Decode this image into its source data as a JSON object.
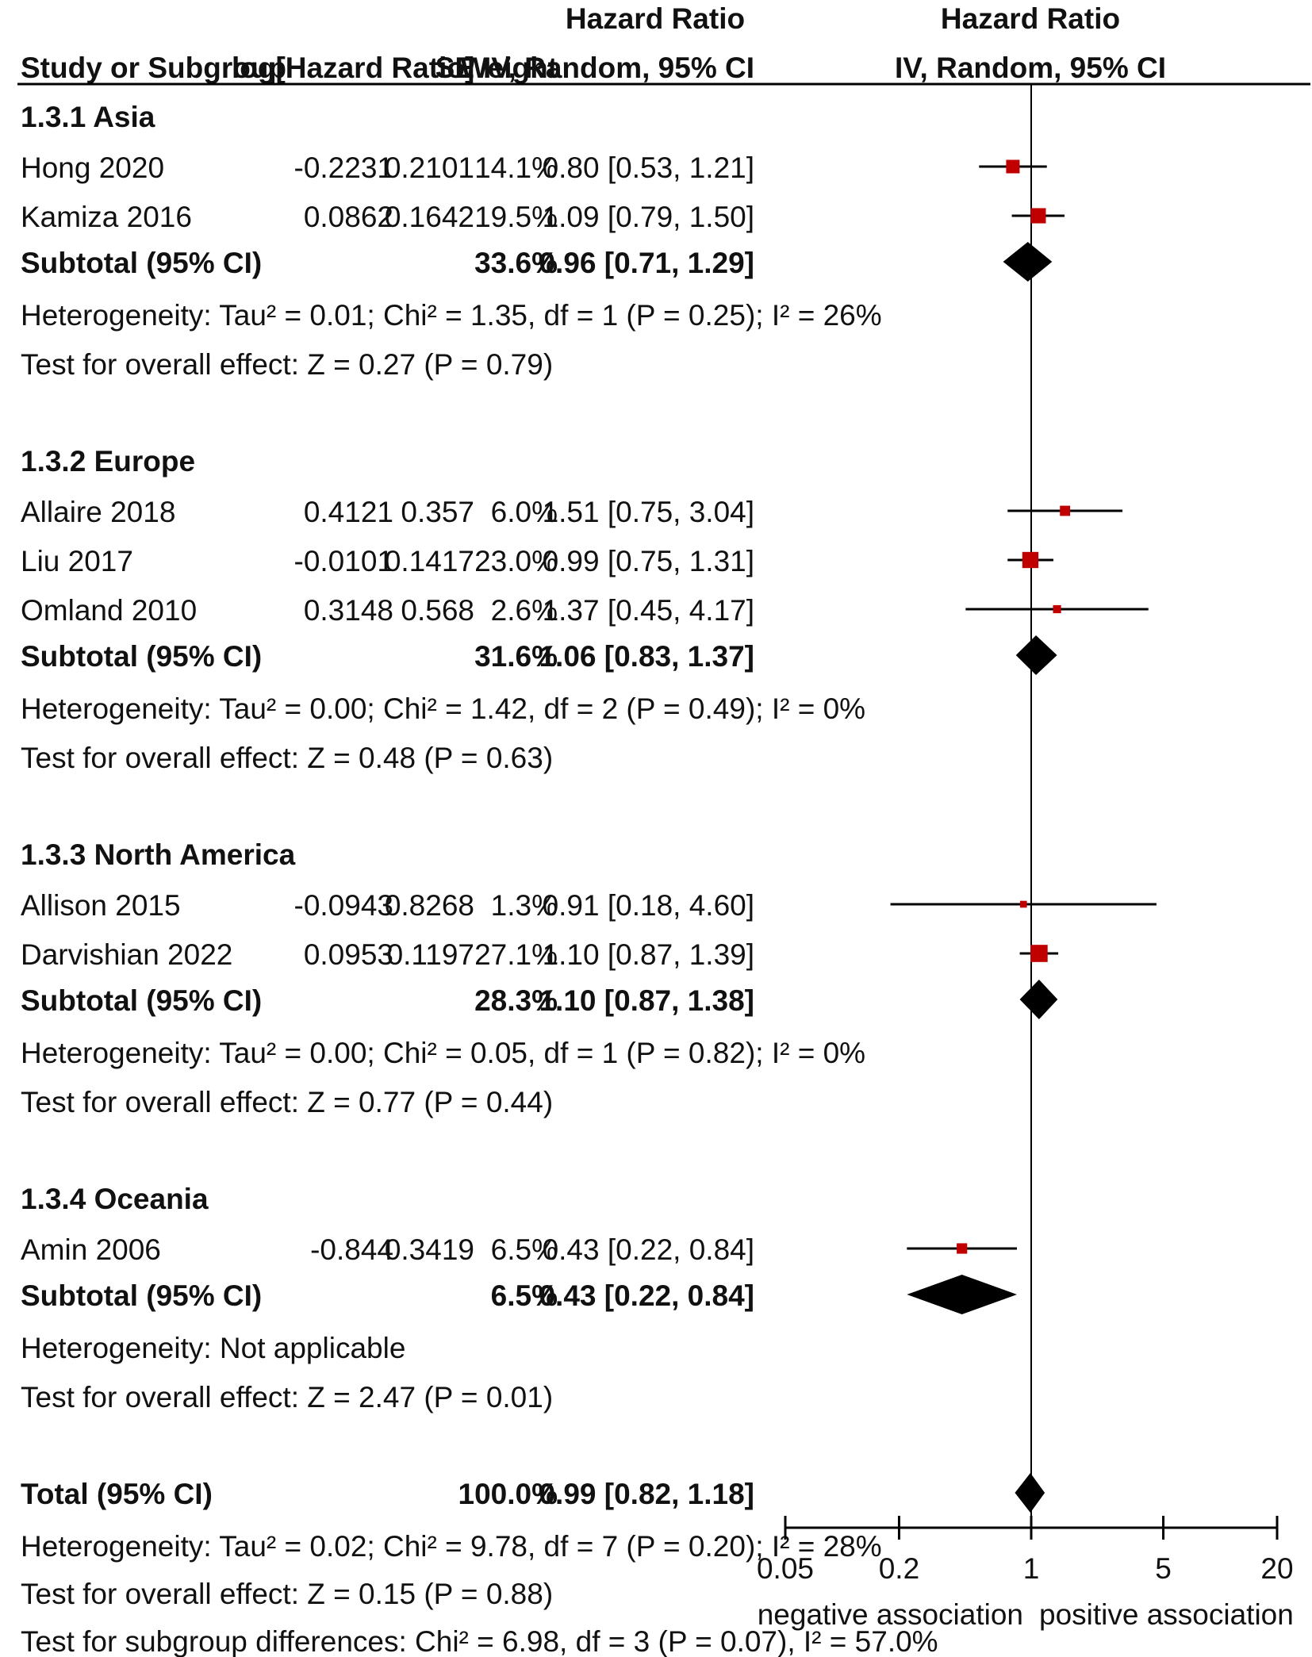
{
  "header": {
    "effect_measure": "Hazard Ratio",
    "study_col": "Study or Subgroup",
    "loghr_col": "log[Hazard Ratio]",
    "se_col": "SE",
    "weight_col": "Weight",
    "ci_col": "IV, Random, 95% CI",
    "plot_effect_measure": "Hazard Ratio",
    "plot_ci_col": "IV, Random, 95% CI"
  },
  "subgroups": [
    {
      "title": "1.3.1 Asia",
      "studies": [
        {
          "name": "Hong 2020",
          "loghr": "-0.2231",
          "se": "0.2101",
          "weight": "14.1%",
          "ci_text": "0.80 [0.53, 1.21]"
        },
        {
          "name": "Kamiza 2016",
          "loghr": "0.0862",
          "se": "0.1642",
          "weight": "19.5%",
          "ci_text": "1.09 [0.79, 1.50]"
        }
      ],
      "subtotal": {
        "label": "Subtotal (95% CI)",
        "weight": "33.6%",
        "ci_text": "0.96 [0.71, 1.29]"
      },
      "heterogeneity": "Heterogeneity: Tau² = 0.01; Chi² = 1.35, df = 1 (P = 0.25); I² = 26%",
      "overall": "Test for overall effect: Z = 0.27 (P = 0.79)"
    },
    {
      "title": "1.3.2 Europe",
      "studies": [
        {
          "name": "Allaire 2018",
          "loghr": "0.4121",
          "se": "0.357",
          "weight": "6.0%",
          "ci_text": "1.51 [0.75, 3.04]"
        },
        {
          "name": "Liu 2017",
          "loghr": "-0.0101",
          "se": "0.1417",
          "weight": "23.0%",
          "ci_text": "0.99 [0.75, 1.31]"
        },
        {
          "name": "Omland 2010",
          "loghr": "0.3148",
          "se": "0.568",
          "weight": "2.6%",
          "ci_text": "1.37 [0.45, 4.17]"
        }
      ],
      "subtotal": {
        "label": "Subtotal (95% CI)",
        "weight": "31.6%",
        "ci_text": "1.06 [0.83, 1.37]"
      },
      "heterogeneity": "Heterogeneity: Tau² = 0.00; Chi² = 1.42, df = 2 (P = 0.49); I² = 0%",
      "overall": "Test for overall effect: Z = 0.48 (P = 0.63)"
    },
    {
      "title": "1.3.3 North America",
      "studies": [
        {
          "name": "Allison 2015",
          "loghr": "-0.0943",
          "se": "0.8268",
          "weight": "1.3%",
          "ci_text": "0.91 [0.18, 4.60]"
        },
        {
          "name": "Darvishian 2022",
          "loghr": "0.0953",
          "se": "0.1197",
          "weight": "27.1%",
          "ci_text": "1.10 [0.87, 1.39]"
        }
      ],
      "subtotal": {
        "label": "Subtotal (95% CI)",
        "weight": "28.3%",
        "ci_text": "1.10 [0.87, 1.38]"
      },
      "heterogeneity": "Heterogeneity: Tau² = 0.00; Chi² = 0.05, df = 1 (P = 0.82); I² = 0%",
      "overall": "Test for overall effect: Z = 0.77 (P = 0.44)"
    },
    {
      "title": "1.3.4 Oceania",
      "studies": [
        {
          "name": "Amin 2006",
          "loghr": "-0.844",
          "se": "0.3419",
          "weight": "6.5%",
          "ci_text": "0.43 [0.22, 0.84]"
        }
      ],
      "subtotal": {
        "label": "Subtotal (95% CI)",
        "weight": "6.5%",
        "ci_text": "0.43 [0.22, 0.84]"
      },
      "heterogeneity": "Heterogeneity: Not applicable",
      "overall": "Test for overall effect: Z = 2.47 (P = 0.01)"
    }
  ],
  "total": {
    "label": "Total (95% CI)",
    "weight": "100.0%",
    "ci_text": "0.99 [0.82, 1.18]",
    "heterogeneity": "Heterogeneity: Tau² = 0.02; Chi² = 9.78, df = 7 (P = 0.20); I² = 28%",
    "overall": "Test for overall effect: Z = 0.15 (P = 0.88)",
    "subgroup_diff": "Test for subgroup differences: Chi² = 6.98, df = 3 (P = 0.07), I² = 57.0%"
  },
  "axis": {
    "left_label": "negative association",
    "right_label": "positive association"
  },
  "colors": {
    "study_marker": "#c00000",
    "diamond": "#000000",
    "line": "#000000"
  },
  "chart_data": {
    "type": "forest",
    "scale": "log",
    "xlim": [
      0.05,
      20
    ],
    "ticks": [
      0.05,
      0.2,
      1,
      5,
      20
    ],
    "tick_labels": [
      "0.05",
      "0.2",
      "1",
      "5",
      "20"
    ],
    "reference_line": 1,
    "studies": [
      {
        "name": "Hong 2020",
        "hr": 0.8,
        "lo": 0.53,
        "hi": 1.21,
        "weight": 14.1
      },
      {
        "name": "Kamiza 2016",
        "hr": 1.09,
        "lo": 0.79,
        "hi": 1.5,
        "weight": 19.5
      },
      {
        "name": "Allaire 2018",
        "hr": 1.51,
        "lo": 0.75,
        "hi": 3.04,
        "weight": 6.0
      },
      {
        "name": "Liu 2017",
        "hr": 0.99,
        "lo": 0.75,
        "hi": 1.31,
        "weight": 23.0
      },
      {
        "name": "Omland 2010",
        "hr": 1.37,
        "lo": 0.45,
        "hi": 4.17,
        "weight": 2.6
      },
      {
        "name": "Allison 2015",
        "hr": 0.91,
        "lo": 0.18,
        "hi": 4.6,
        "weight": 1.3
      },
      {
        "name": "Darvishian 2022",
        "hr": 1.1,
        "lo": 0.87,
        "hi": 1.39,
        "weight": 27.1
      },
      {
        "name": "Amin 2006",
        "hr": 0.43,
        "lo": 0.22,
        "hi": 0.84,
        "weight": 6.5
      }
    ],
    "subtotals": [
      {
        "name": "1.3.1 Asia",
        "hr": 0.96,
        "lo": 0.71,
        "hi": 1.29
      },
      {
        "name": "1.3.2 Europe",
        "hr": 1.06,
        "lo": 0.83,
        "hi": 1.37
      },
      {
        "name": "1.3.3 North America",
        "hr": 1.1,
        "lo": 0.87,
        "hi": 1.38
      },
      {
        "name": "1.3.4 Oceania",
        "hr": 0.43,
        "lo": 0.22,
        "hi": 0.84
      }
    ],
    "overall": {
      "hr": 0.99,
      "lo": 0.82,
      "hi": 1.18
    }
  }
}
